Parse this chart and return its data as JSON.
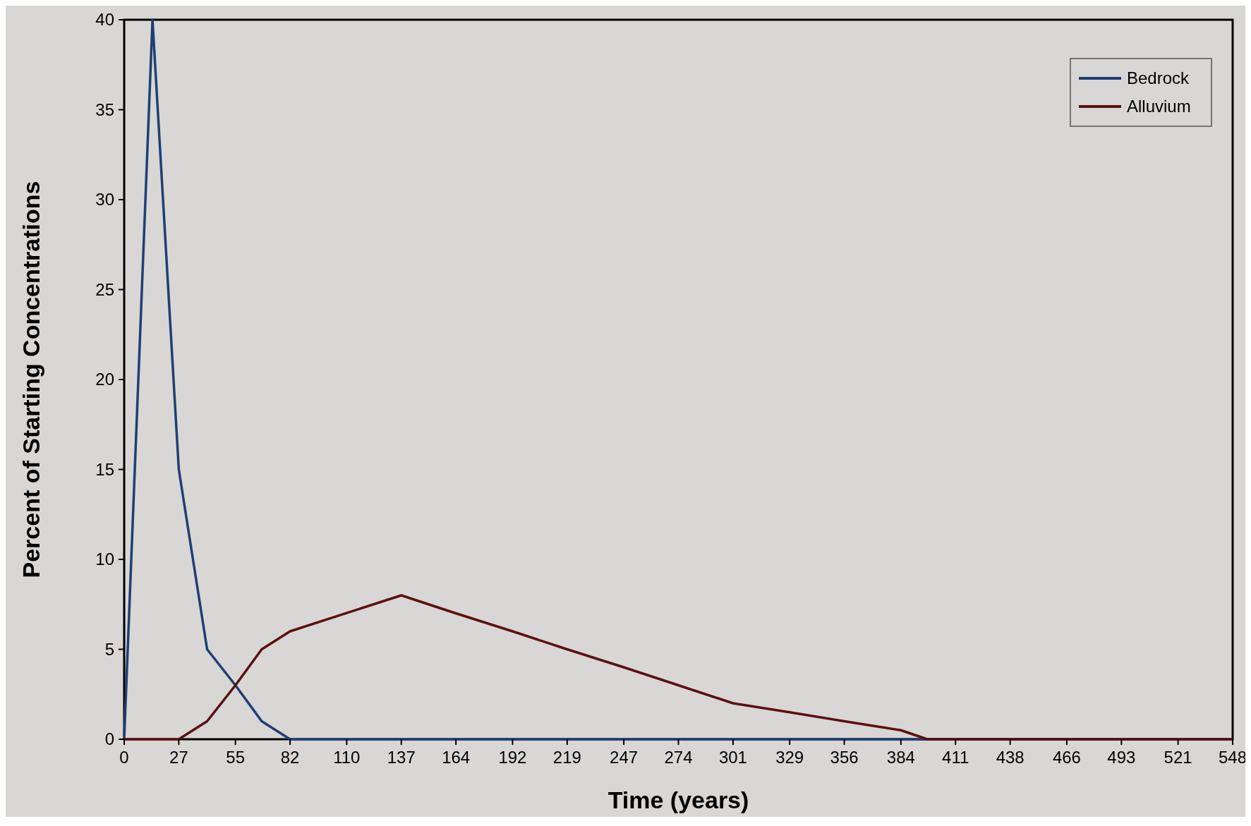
{
  "chart_data": {
    "type": "line",
    "xlabel": "Time (years)",
    "ylabel": "Percent of Starting Concentrations",
    "xlim": [
      0,
      548
    ],
    "ylim": [
      0,
      40
    ],
    "xticks": [
      0,
      27,
      55,
      82,
      110,
      137,
      164,
      192,
      219,
      247,
      274,
      301,
      329,
      356,
      384,
      411,
      438,
      466,
      493,
      521,
      548
    ],
    "yticks": [
      0,
      5,
      10,
      15,
      20,
      25,
      30,
      35,
      40
    ],
    "grid": false,
    "legend": "top right",
    "marker": "none",
    "line_style": "solid",
    "series": [
      {
        "name": "Bedrock",
        "color": "#1f3f73",
        "x": [
          0,
          14,
          27,
          41,
          55,
          68,
          82,
          548
        ],
        "values": [
          0,
          40,
          15,
          5,
          3,
          1,
          0,
          0
        ]
      },
      {
        "name": "Alluvium",
        "color": "#5c1010",
        "x": [
          0,
          14,
          27,
          41,
          55,
          68,
          82,
          137,
          164,
          192,
          219,
          247,
          274,
          301,
          329,
          356,
          384,
          397,
          548
        ],
        "values": [
          0,
          0,
          0,
          1,
          3,
          5,
          6,
          8,
          7,
          6,
          5,
          4,
          3,
          2,
          1.5,
          1,
          0.5,
          0,
          0
        ]
      }
    ]
  }
}
